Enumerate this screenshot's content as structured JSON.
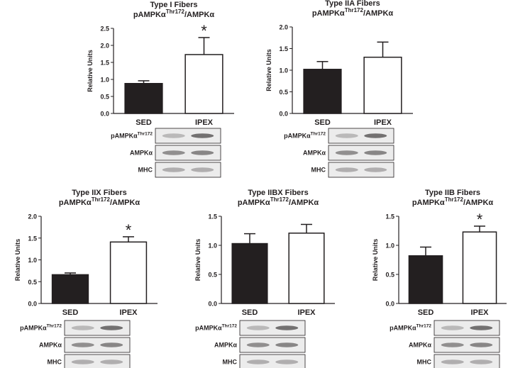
{
  "chart_data": [
    {
      "type": "bar",
      "title": "Type I Fibers",
      "subtitle": {
        "base": "pAMPKα",
        "sup": "Thr172",
        "rest": "/AMPKα"
      },
      "ylabel": "Relative Units",
      "categories": [
        "SED",
        "IPEX"
      ],
      "values": [
        0.88,
        1.73
      ],
      "errors": [
        0.08,
        0.5
      ],
      "colors": [
        "#231f20",
        "#ffffff"
      ],
      "significance": [
        null,
        "*"
      ],
      "ylim": [
        0,
        2.5
      ],
      "yticks": [
        {
          "value": 0,
          "label": "0.0"
        },
        0.5,
        {
          "value": 1,
          "label": "1.0"
        },
        1.5,
        {
          "value": 2,
          "label": "2.0"
        },
        2.5
      ],
      "blot_labels": [
        {
          "base": "pAMPKα",
          "sup": "Thr172"
        },
        "AMPKα",
        "MHC"
      ]
    },
    {
      "type": "bar",
      "title": "Type IIA Fibers",
      "subtitle": {
        "base": "pAMPKα",
        "sup": "Thr172",
        "rest": "/AMPKα"
      },
      "ylabel": "Relative Units",
      "categories": [
        "SED",
        "IPEX"
      ],
      "values": [
        1.02,
        1.3
      ],
      "errors": [
        0.18,
        0.35
      ],
      "colors": [
        "#231f20",
        "#ffffff"
      ],
      "significance": [
        null,
        null
      ],
      "ylim": [
        0,
        2
      ],
      "yticks": [
        {
          "value": 0,
          "label": "0.0"
        },
        0.5,
        {
          "value": 1,
          "label": "1.0"
        },
        1.5,
        {
          "value": 2,
          "label": "2.0"
        }
      ],
      "blot_labels": [
        {
          "base": "pAMPKα",
          "sup": "Thr172"
        },
        "AMPKα",
        "MHC"
      ]
    },
    {
      "type": "bar",
      "title": "Type IIX Fibers",
      "subtitle": {
        "base": "pAMPKα",
        "sup": "Thr172",
        "rest": "/AMPKα"
      },
      "ylabel": "Relative Units",
      "categories": [
        "SED",
        "IPEX"
      ],
      "values": [
        0.66,
        1.41
      ],
      "errors": [
        0.04,
        0.12
      ],
      "colors": [
        "#231f20",
        "#ffffff"
      ],
      "significance": [
        null,
        "*"
      ],
      "ylim": [
        0,
        2
      ],
      "yticks": [
        {
          "value": 0,
          "label": "0.0"
        },
        0.5,
        {
          "value": 1,
          "label": "1.0"
        },
        1.5,
        {
          "value": 2,
          "label": "2.0"
        }
      ],
      "blot_labels": [
        {
          "base": "pAMPKα",
          "sup": "Thr172"
        },
        "AMPKα",
        "MHC"
      ]
    },
    {
      "type": "bar",
      "title": "Type IIBX Fibers",
      "subtitle": {
        "base": "pAMPKα",
        "sup": "Thr172",
        "rest": "/AMPKα"
      },
      "ylabel": "Relative Units",
      "categories": [
        "SED",
        "IPEX"
      ],
      "values": [
        1.03,
        1.21
      ],
      "errors": [
        0.17,
        0.15
      ],
      "colors": [
        "#231f20",
        "#ffffff"
      ],
      "significance": [
        null,
        null
      ],
      "ylim": [
        0,
        1.5
      ],
      "yticks": [
        {
          "value": 0,
          "label": "0.0"
        },
        0.5,
        {
          "value": 1,
          "label": "1.0"
        },
        1.5
      ],
      "blot_labels": [
        {
          "base": "pAMPKα",
          "sup": "Thr172"
        },
        "AMPKα",
        "MHC"
      ]
    },
    {
      "type": "bar",
      "title": "Type IIB Fibers",
      "subtitle": {
        "base": "pAMPKα",
        "sup": "Thr172",
        "rest": "/AMPKα"
      },
      "ylabel": "Relative Units",
      "categories": [
        "SED",
        "IPEX"
      ],
      "values": [
        0.82,
        1.23
      ],
      "errors": [
        0.15,
        0.1
      ],
      "colors": [
        "#231f20",
        "#ffffff"
      ],
      "significance": [
        null,
        "*"
      ],
      "ylim": [
        0,
        1.5
      ],
      "yticks": [
        {
          "value": 0,
          "label": "0.0"
        },
        0.5,
        {
          "value": 1,
          "label": "1.0"
        },
        1.5
      ],
      "blot_labels": [
        {
          "base": "pAMPKα",
          "sup": "Thr172"
        },
        "AMPKα",
        "MHC"
      ]
    }
  ]
}
